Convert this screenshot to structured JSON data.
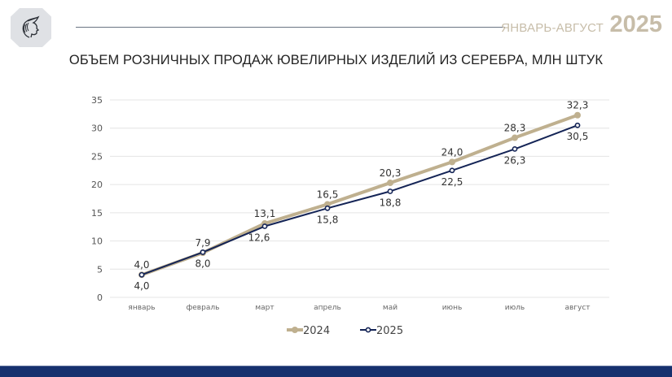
{
  "header": {
    "period": "ЯНВАРЬ-АВГУСТ",
    "year": "2025",
    "logo_icon": "athena-head-icon"
  },
  "title": "ОБЪЕМ РОЗНИЧНЫХ ПРОДАЖ ЮВЕЛИРНЫХ ИЗДЕЛИЙ ИЗ СЕРЕБРА, МЛН ШТУК",
  "colors": {
    "series_2024": "#bfb08f",
    "series_2025": "#142456",
    "footer": "#16316e",
    "accent_text": "#c7bda9"
  },
  "chart_data": {
    "type": "line",
    "title": "ОБЪЕМ РОЗНИЧНЫХ ПРОДАЖ ЮВЕЛИРНЫХ ИЗДЕЛИЙ ИЗ СЕРЕБРА, МЛН ШТУК",
    "xlabel": "",
    "ylabel": "",
    "categories": [
      "январь",
      "февраль",
      "март",
      "апрель",
      "май",
      "июнь",
      "июль",
      "август"
    ],
    "series": [
      {
        "name": "2024",
        "values": [
          4.0,
          7.9,
          13.1,
          16.5,
          20.3,
          24.0,
          28.3,
          32.3
        ],
        "labels": [
          "4,0",
          "7,9",
          "13,1",
          "16,5",
          "20,3",
          "24,0",
          "28,3",
          "32,3"
        ],
        "color": "#bfb08f"
      },
      {
        "name": "2025",
        "values": [
          4.0,
          8.0,
          12.6,
          15.8,
          18.8,
          22.5,
          26.3,
          30.5
        ],
        "labels": [
          "4,0",
          "8,0",
          "12,6",
          "15,8",
          "18,8",
          "22,5",
          "26,3",
          "30,5"
        ],
        "color": "#142456"
      }
    ],
    "ylim": [
      0,
      35
    ],
    "yticks": [
      0,
      5,
      10,
      15,
      20,
      25,
      30,
      35
    ],
    "grid": true,
    "legend_position": "bottom"
  }
}
